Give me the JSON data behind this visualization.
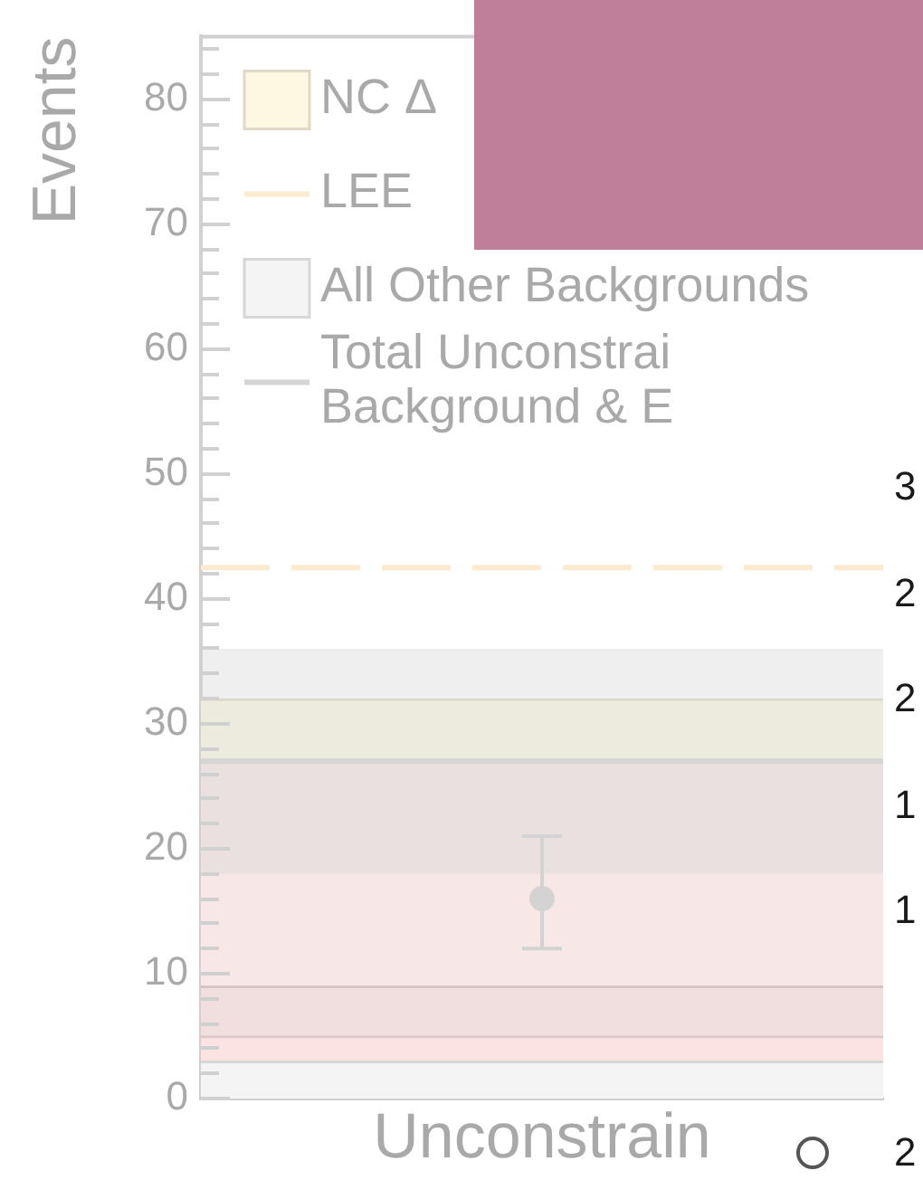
{
  "chart_data": {
    "type": "bar",
    "ylabel": "Events",
    "categories": [
      "Unconstrain"
    ],
    "stacked": true,
    "ylim": [
      0,
      85
    ],
    "yticks": [
      0,
      {
        "value": 2,
        "label": null
      },
      {
        "value": 4,
        "label": null
      },
      {
        "value": 6,
        "label": null
      },
      {
        "value": 8,
        "label": null
      },
      10,
      {
        "value": 12,
        "label": null
      },
      {
        "value": 14,
        "label": null
      },
      {
        "value": 16,
        "label": null
      },
      {
        "value": 18,
        "label": null
      },
      20,
      {
        "value": 22,
        "label": null
      },
      {
        "value": 24,
        "label": null
      },
      {
        "value": 26,
        "label": null
      },
      {
        "value": 28,
        "label": null
      },
      30,
      {
        "value": 32,
        "label": null
      },
      {
        "value": 34,
        "label": null
      },
      {
        "value": 36,
        "label": null
      },
      {
        "value": 38,
        "label": null
      },
      40,
      {
        "value": 42,
        "label": null
      },
      {
        "value": 44,
        "label": null
      },
      {
        "value": 46,
        "label": null
      },
      {
        "value": 48,
        "label": null
      },
      50,
      {
        "value": 52,
        "label": null
      },
      {
        "value": 54,
        "label": null
      },
      {
        "value": 56,
        "label": null
      },
      {
        "value": 58,
        "label": null
      },
      60,
      {
        "value": 62,
        "label": null
      },
      {
        "value": 64,
        "label": null
      },
      {
        "value": 66,
        "label": null
      },
      {
        "value": 68,
        "label": null
      },
      70,
      {
        "value": 72,
        "label": null
      },
      {
        "value": 74,
        "label": null
      },
      {
        "value": 76,
        "label": null
      },
      {
        "value": 78,
        "label": null
      },
      80,
      {
        "value": 82,
        "label": null
      },
      {
        "value": 84,
        "label": null
      }
    ],
    "grid": false,
    "legend": "top left",
    "annotations": [
      "3",
      "2",
      "2",
      "1",
      "1",
      "2"
    ],
    "bands": [
      {
        "axis": "y",
        "from": 18,
        "to": 36,
        "color": "#d5d5d5"
      }
    ],
    "ref_lines": [
      {
        "axis": "y",
        "value": 42.5,
        "label": "LEE",
        "color": "#fbecd0",
        "line_style": "dashed"
      },
      {
        "axis": "y",
        "value": 27,
        "label": "Total Unconstrai Background & E",
        "color": "#d5d5d5"
      }
    ],
    "series": [
      {
        "type": "scatter",
        "color": "#d3d3d3",
        "values": [
          16
        ],
        "errors": [
          [
            12,
            21
          ]
        ],
        "marker": "circle"
      },
      {
        "name": "All Other Backgrounds",
        "color": "#f4f4f4",
        "values": [
          3
        ]
      },
      {
        "color": "#fbe3e1",
        "values": [
          2
        ]
      },
      {
        "color": "#f1dfdf",
        "values": [
          4
        ]
      },
      {
        "color": "#f8e7e7",
        "values": [
          18
        ]
      },
      {
        "name": "NC Δ",
        "color": "#fcf8e2",
        "values": [
          5
        ]
      }
    ]
  }
}
